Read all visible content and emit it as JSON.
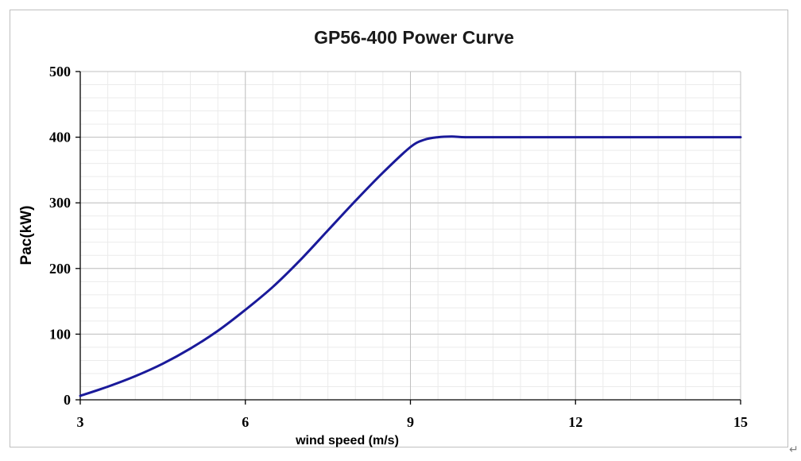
{
  "chart_data": {
    "type": "line",
    "title": "GP56-400  Power Curve",
    "xlabel": "wind speed (m/s)",
    "ylabel": "Pac(kW)",
    "xlim": [
      3,
      15
    ],
    "ylim": [
      0,
      500
    ],
    "x_ticks": [
      3,
      6,
      9,
      12,
      15
    ],
    "y_ticks": [
      0,
      100,
      200,
      300,
      400,
      500
    ],
    "x_tick_labels": [
      "3",
      "6",
      "9",
      "12",
      "15"
    ],
    "y_tick_labels": [
      "0",
      "100",
      "200",
      "300",
      "400",
      "500"
    ],
    "grid": true,
    "legend": "none",
    "series": [
      {
        "color": "#1a1a9a",
        "x": [
          3,
          3.5,
          4,
          4.5,
          5,
          5.5,
          6,
          6.5,
          7,
          7.5,
          8,
          8.5,
          9,
          9.25,
          9.5,
          9.75,
          10,
          10.5,
          11,
          12,
          13,
          14,
          15
        ],
        "y": [
          6,
          20,
          36,
          55,
          78,
          105,
          137,
          172,
          213,
          258,
          303,
          346,
          385,
          396,
          400,
          401,
          400,
          400,
          400,
          400,
          400,
          400,
          400
        ]
      }
    ]
  },
  "colors": {
    "major_grid": "#c0c0c0",
    "minor_grid": "#ebebeb",
    "axis": "#000000",
    "frame_border": "#bfbfbf"
  },
  "trailing_mark": "↵"
}
